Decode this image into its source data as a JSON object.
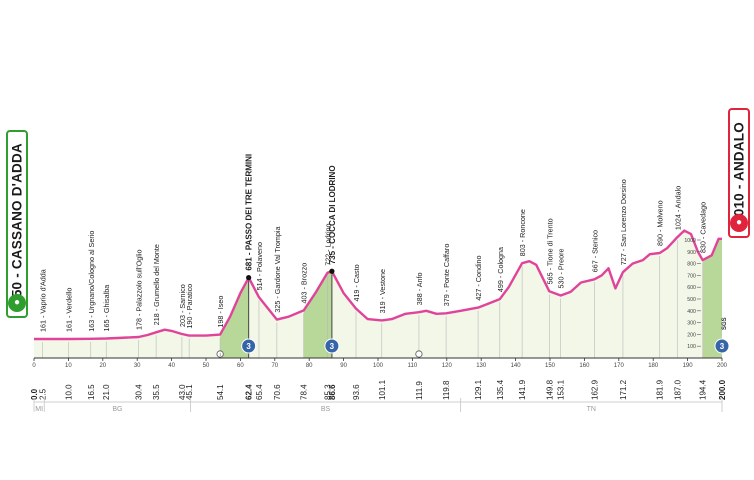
{
  "start_panel": {
    "label": "150 - CASSANO D'ADDA",
    "icon": "bicycle-icon"
  },
  "finish_panel": {
    "label": "1010 - ANDALO",
    "icon": "bicycle-icon"
  },
  "colors": {
    "profile_line": "#e0449a",
    "climb_fill": "#b8d89a",
    "area_fill": "#f2f7e8",
    "start_green": "#2f9e2f",
    "finish_red": "#e0243b",
    "km_badge": "#3564a8"
  },
  "chart_data": {
    "type": "area",
    "xlim": [
      0,
      200
    ],
    "ylim": [
      0,
      1100
    ],
    "grid": false,
    "distance_ticks": [
      "0",
      "10",
      "20",
      "30",
      "40",
      "50",
      "60",
      "70",
      "80",
      "90",
      "100",
      "110",
      "120",
      "130",
      "140",
      "150",
      "160",
      "170",
      "180",
      "190",
      "200"
    ],
    "km_values": [
      "0.0",
      "2.5",
      "10.0",
      "16.5",
      "21.0",
      "30.4",
      "35.5",
      "43.0",
      "45.1",
      "54.1",
      "62.4",
      "65.4",
      "70.6",
      "78.4",
      "85.3",
      "86.6",
      "93.6",
      "101.1",
      "111.9",
      "119.8",
      "129.1",
      "135.4",
      "141.9",
      "149.8",
      "153.1",
      "162.9",
      "171.2",
      "181.9",
      "187.0",
      "194.4",
      "200.0"
    ],
    "altitude_ticks": [
      "100",
      "200",
      "300",
      "400",
      "500",
      "600",
      "700",
      "800",
      "900",
      "1000"
    ],
    "profile": {
      "x": [
        0,
        2.5,
        10,
        16.5,
        21,
        30.4,
        33,
        35.5,
        38,
        40,
        43,
        45.1,
        50,
        54.1,
        57,
        60,
        62.4,
        65.4,
        68,
        70.6,
        74,
        78.4,
        82,
        85.3,
        86.6,
        90,
        93.6,
        97,
        101.1,
        104,
        108,
        111.9,
        114,
        117,
        119.8,
        124,
        129.1,
        132,
        135.4,
        138,
        141.9,
        144,
        146,
        149.8,
        153.1,
        156,
        159,
        162.9,
        165,
        167,
        169,
        171.2,
        174,
        177,
        179,
        181.9,
        184,
        187,
        189,
        191,
        193,
        194.4,
        197,
        199,
        200
      ],
      "y": [
        161,
        161,
        161,
        163,
        165,
        178,
        195,
        218,
        240,
        230,
        203,
        190,
        190,
        198,
        350,
        550,
        681,
        514,
        420,
        325,
        350,
        403,
        560,
        722,
        735,
        550,
        419,
        330,
        319,
        330,
        375,
        388,
        400,
        375,
        379,
        400,
        427,
        460,
        499,
        600,
        803,
        820,
        790,
        565,
        530,
        560,
        640,
        667,
        700,
        760,
        590,
        727,
        800,
        830,
        880,
        890,
        930,
        1024,
        1080,
        1050,
        900,
        830,
        870,
        1010,
        1010
      ]
    },
    "waypoints": [
      {
        "x": 2.5,
        "label": "161 - Vaprio d'Adda"
      },
      {
        "x": 10,
        "label": "161 - Verdello"
      },
      {
        "x": 16.5,
        "label": "163 - Urgnano/Cologno al Serio"
      },
      {
        "x": 21,
        "label": "165 - Ghisalba"
      },
      {
        "x": 30.4,
        "label": "178 - Palazzolo sull'Oglio"
      },
      {
        "x": 35.5,
        "label": "218 - Grumello del Monte"
      },
      {
        "x": 43,
        "label": "203 - Sarnico"
      },
      {
        "x": 45.1,
        "label": "190 - Paratico"
      },
      {
        "x": 54.1,
        "label": "198 - Iseo"
      },
      {
        "x": 62.4,
        "label": "681 - PASSO DEI TRE TERMINI",
        "bold": true
      },
      {
        "x": 65.4,
        "label": "514 - Polaveno"
      },
      {
        "x": 70.6,
        "label": "325 - Gardone Val Trompia"
      },
      {
        "x": 78.4,
        "label": "403 - Brozzo"
      },
      {
        "x": 85.3,
        "label": "722 - Lodrino"
      },
      {
        "x": 86.6,
        "label": "735 - COCCA DI LODRINO",
        "bold": true
      },
      {
        "x": 93.6,
        "label": "419 - Casto"
      },
      {
        "x": 101.1,
        "label": "319 - Vestone"
      },
      {
        "x": 111.9,
        "label": "388 - Anfo"
      },
      {
        "x": 119.8,
        "label": "379 - Ponte Caffaro"
      },
      {
        "x": 129.1,
        "label": "427 - Condino"
      },
      {
        "x": 135.4,
        "label": "499 - Cologna"
      },
      {
        "x": 141.9,
        "label": "803 - Roncone"
      },
      {
        "x": 149.8,
        "label": "565 - Tione di Trento"
      },
      {
        "x": 153.1,
        "label": "530 - Preore"
      },
      {
        "x": 162.9,
        "label": "667 - Stenico"
      },
      {
        "x": 171.2,
        "label": "727 - San Lorenzo Dorsino"
      },
      {
        "x": 181.9,
        "label": "890 - Molveno"
      },
      {
        "x": 187,
        "label": "1024 - Andalo"
      },
      {
        "x": 194.4,
        "label": "830 - Cavedago"
      }
    ],
    "climbs": [
      {
        "x0": 54.1,
        "x1": 62.4
      },
      {
        "x0": 78.4,
        "x1": 86.6
      },
      {
        "x0": 194.4,
        "x1": 200
      }
    ],
    "summits": [
      62.4,
      86.6
    ],
    "km_badges": [
      {
        "x": 62.4,
        "label": "3"
      },
      {
        "x": 86.6,
        "label": "3"
      },
      {
        "x": 200,
        "label": "3"
      }
    ],
    "markers": [
      {
        "x": 54.1,
        "label": "I",
        "kind": "intermediate-sprint"
      },
      {
        "x": 111.9,
        "label": "",
        "kind": "feed-zone"
      }
    ],
    "finish_marker_label": "SGS",
    "regions": [
      {
        "x0": 0,
        "x1": 3,
        "label": "MI"
      },
      {
        "x0": 3,
        "x1": 45.5,
        "label": "BG"
      },
      {
        "x0": 45.5,
        "x1": 124,
        "label": "BS"
      },
      {
        "x0": 124,
        "x1": 200,
        "label": "TN"
      }
    ]
  }
}
